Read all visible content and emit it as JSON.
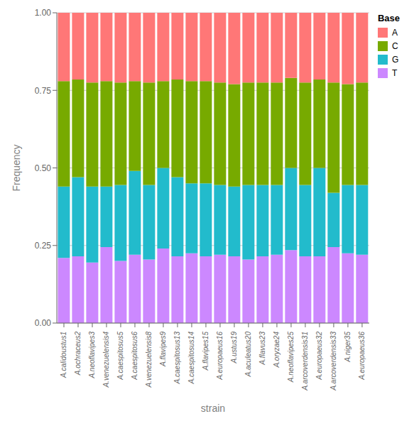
{
  "chart_data": {
    "type": "bar",
    "stacked": true,
    "xlabel": "strain",
    "ylabel": "Frequency",
    "legend_title": "Base",
    "legend": "right",
    "grid": true,
    "categories": [
      "A.calidoustus1",
      "A.ochraceus2",
      "A.neoflavipes3",
      "A.venezuelensis4",
      "A.caespitosus5",
      "A.caespitosus6",
      "A.venezuelensis8",
      "A.flavipes9",
      "A.caespitosus13",
      "A.caespitosus14",
      "A.flavipes15",
      "A.europaeus16",
      "A.ustus19",
      "A.aculeatus20",
      "A.flavus23",
      "A.oryzae24",
      "A.neoflavipes25",
      "A.arcoverdensis31",
      "A.europaeus32",
      "A.arcoverdensis33",
      "A.niger35",
      "A.europaeus36"
    ],
    "series": [
      {
        "name": "T",
        "color": "#CC88FF",
        "values": [
          0.21,
          0.215,
          0.195,
          0.245,
          0.2,
          0.22,
          0.205,
          0.24,
          0.215,
          0.225,
          0.215,
          0.22,
          0.215,
          0.205,
          0.215,
          0.22,
          0.235,
          0.215,
          0.215,
          0.245,
          0.225,
          0.22
        ]
      },
      {
        "name": "G",
        "color": "#22BBCC",
        "values": [
          0.23,
          0.255,
          0.245,
          0.195,
          0.245,
          0.27,
          0.24,
          0.26,
          0.255,
          0.225,
          0.235,
          0.225,
          0.225,
          0.24,
          0.23,
          0.225,
          0.265,
          0.23,
          0.285,
          0.175,
          0.22,
          0.225
        ]
      },
      {
        "name": "C",
        "color": "#77AA00",
        "values": [
          0.34,
          0.315,
          0.335,
          0.34,
          0.33,
          0.29,
          0.33,
          0.28,
          0.315,
          0.33,
          0.33,
          0.33,
          0.33,
          0.33,
          0.33,
          0.33,
          0.29,
          0.33,
          0.285,
          0.355,
          0.325,
          0.33
        ]
      },
      {
        "name": "A",
        "color": "#FF7777",
        "values": [
          0.22,
          0.215,
          0.225,
          0.22,
          0.225,
          0.22,
          0.225,
          0.22,
          0.215,
          0.22,
          0.22,
          0.225,
          0.23,
          0.225,
          0.225,
          0.225,
          0.21,
          0.225,
          0.215,
          0.225,
          0.23,
          0.225
        ]
      }
    ],
    "ylim": [
      0,
      1.0
    ],
    "yticks": [
      {
        "value": 0.0,
        "label": "0.00"
      },
      {
        "value": 0.25,
        "label": "0.25"
      },
      {
        "value": 0.5,
        "label": "0.50"
      },
      {
        "value": 0.75,
        "label": "0.75"
      },
      {
        "value": 1.0,
        "label": "1.00"
      }
    ]
  }
}
